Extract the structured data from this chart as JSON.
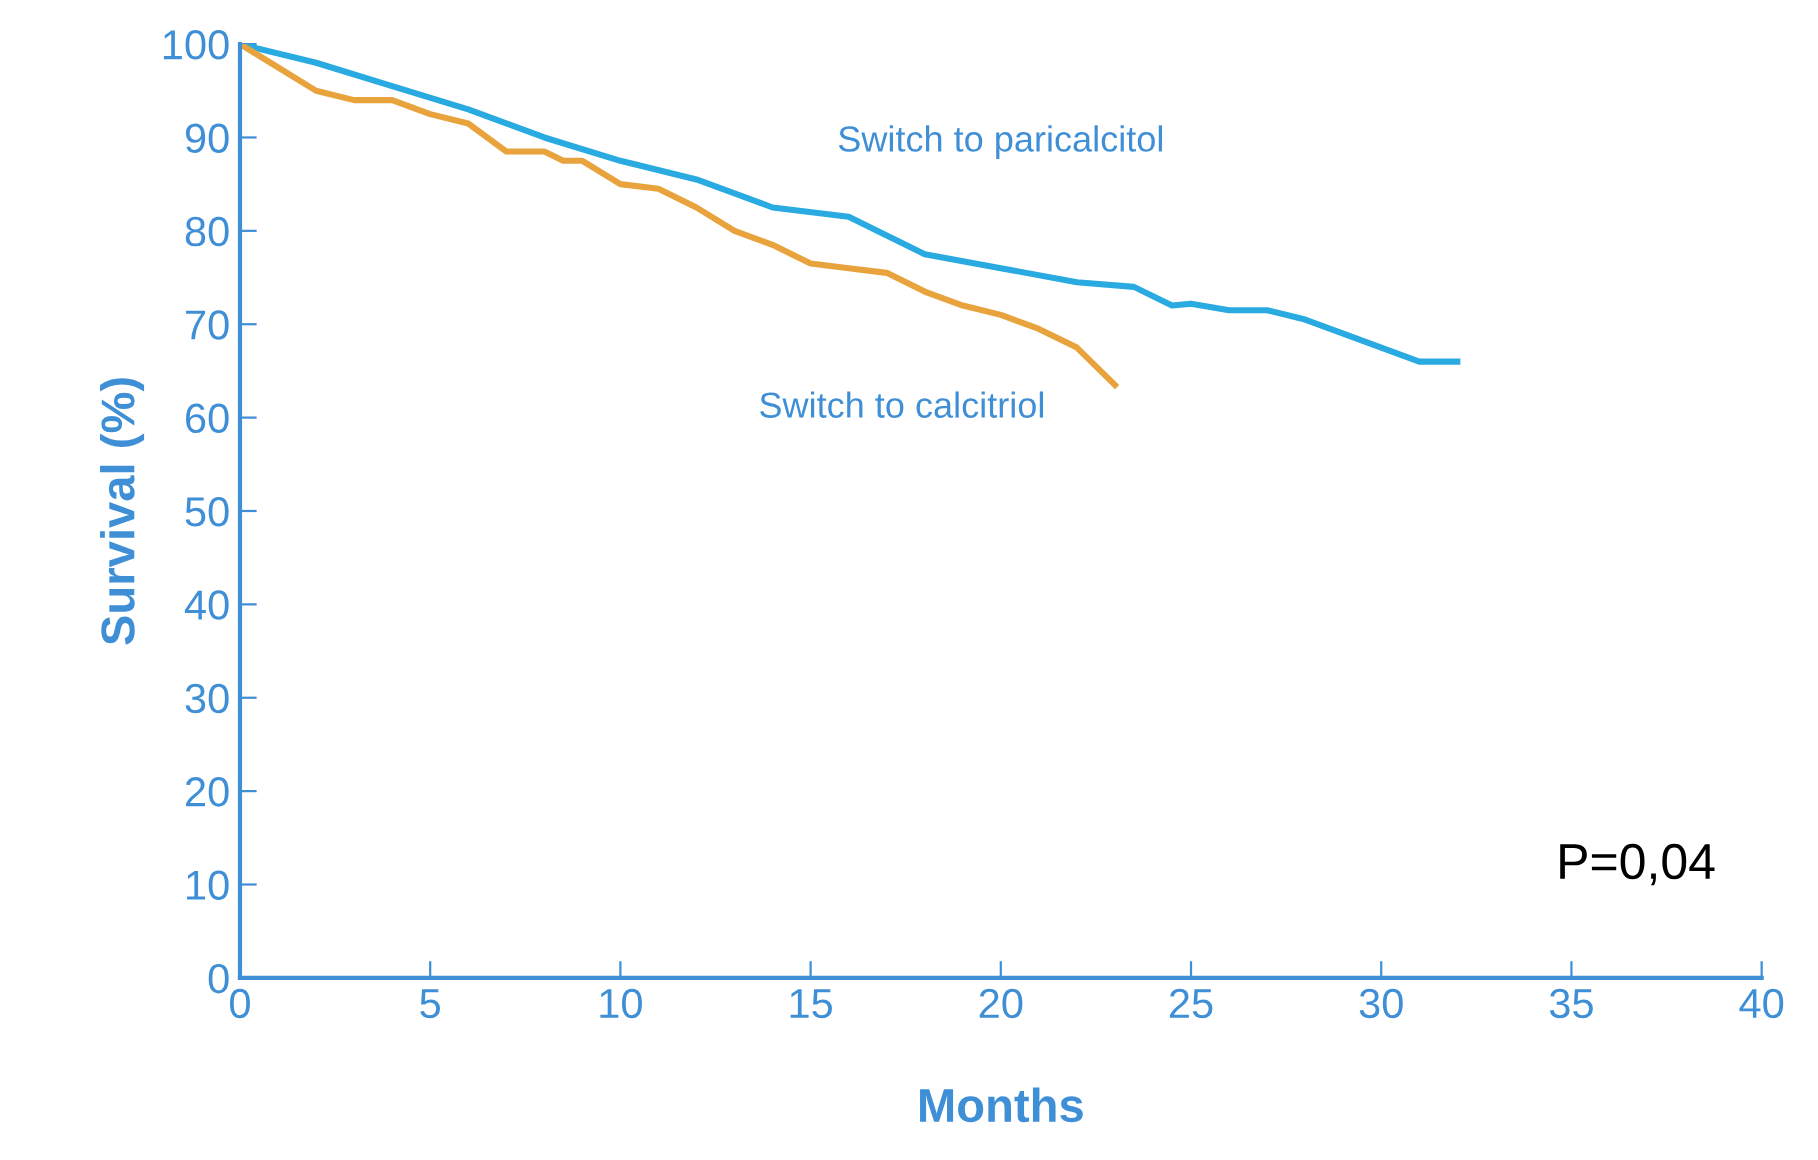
{
  "chart_data": {
    "type": "line",
    "xlabel": "Months",
    "ylabel": "Survival (%)",
    "xlim": [
      0,
      40
    ],
    "ylim": [
      0,
      100
    ],
    "xticks": [
      0,
      5,
      10,
      15,
      20,
      25,
      30,
      35,
      40
    ],
    "yticks": [
      0,
      10,
      20,
      30,
      40,
      50,
      60,
      70,
      80,
      90,
      100
    ],
    "grid": false,
    "legend": false,
    "marker": "none",
    "line_style": "solid",
    "series": [
      {
        "name": "Switch to paricalcitol",
        "color": "#29abe2",
        "x": [
          0,
          2,
          4,
          6,
          8,
          10,
          12,
          14,
          16,
          18,
          20,
          22,
          23.5,
          24.5,
          25,
          26,
          27,
          28,
          30,
          31,
          32
        ],
        "values": [
          100,
          98,
          95.5,
          93,
          90,
          87.5,
          85.5,
          82.5,
          81.5,
          77.5,
          76,
          74.5,
          74,
          72,
          72.2,
          71.5,
          71.5,
          70.5,
          67.5,
          66,
          66
        ]
      },
      {
        "name": "Switch to calcitriol",
        "color": "#e8a33d",
        "x": [
          0,
          1,
          2,
          3,
          4,
          5,
          6,
          7,
          8,
          8.5,
          9,
          10,
          11,
          12,
          13,
          14,
          15,
          16,
          17,
          18,
          19,
          20,
          21,
          22,
          23
        ],
        "values": [
          100,
          97.5,
          95,
          94,
          94,
          92.5,
          91.5,
          88.5,
          88.5,
          87.5,
          87.5,
          85,
          84.5,
          82.5,
          80,
          78.5,
          76.5,
          76,
          75.5,
          73.5,
          72,
          71,
          69.5,
          67.5,
          63.5
        ]
      }
    ],
    "annotations": [
      "P=0,04"
    ]
  }
}
